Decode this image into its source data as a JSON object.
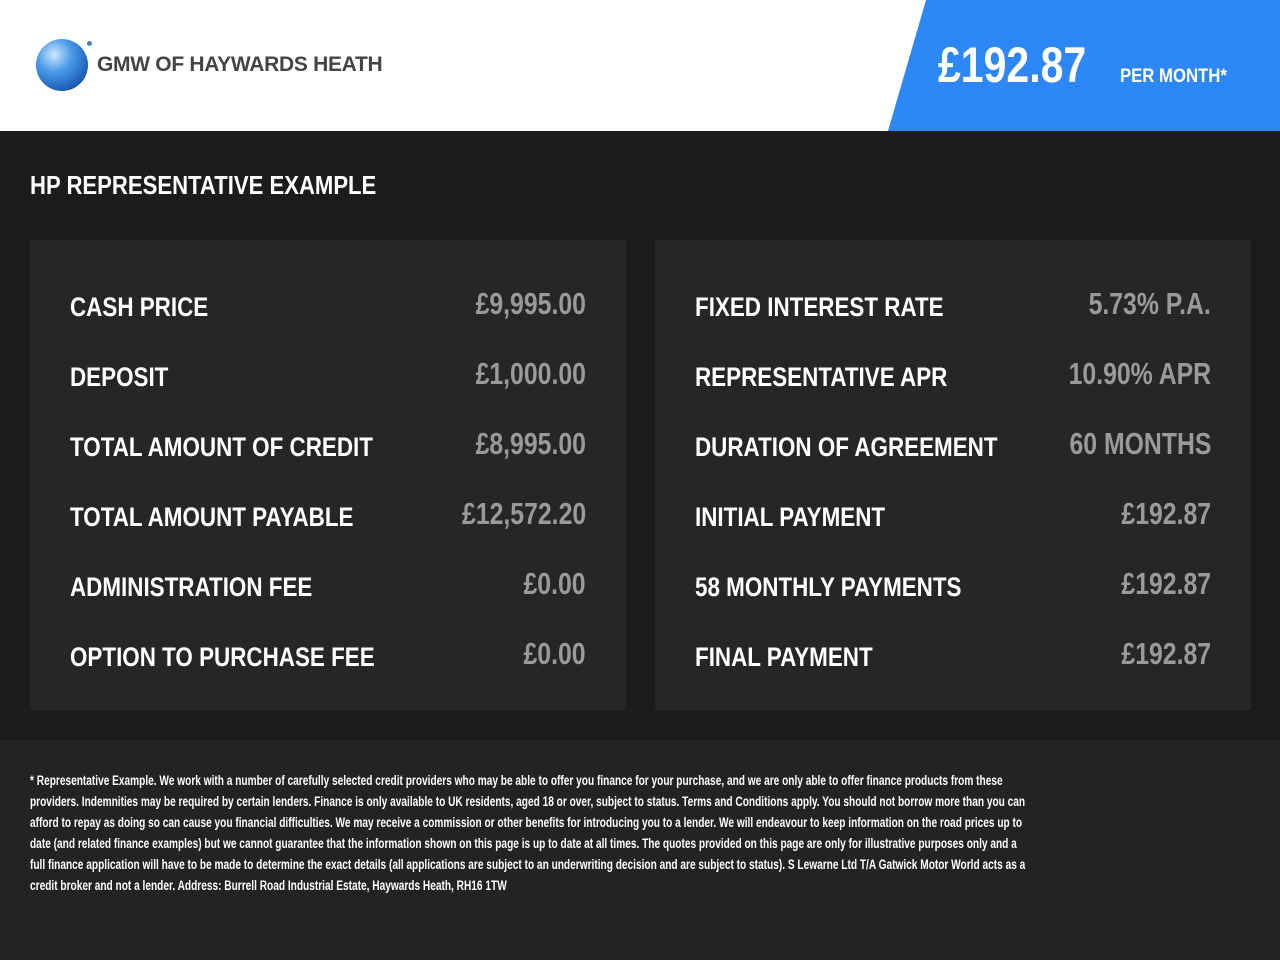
{
  "header": {
    "logo_text": "GMW OF HAYWARDS HEATH",
    "price": "£192.87",
    "per_month": "PER MONTH*",
    "accent": "#2e87f6"
  },
  "title": "HP REPRESENTATIVE EXAMPLE",
  "left": [
    {
      "label": "CASH PRICE",
      "value": "£9,995.00"
    },
    {
      "label": "DEPOSIT",
      "value": "£1,000.00"
    },
    {
      "label": "TOTAL AMOUNT OF CREDIT",
      "value": "£8,995.00"
    },
    {
      "label": "TOTAL AMOUNT PAYABLE",
      "value": "£12,572.20"
    },
    {
      "label": "ADMINISTRATION FEE",
      "value": "£0.00"
    },
    {
      "label": "OPTION TO PURCHASE FEE",
      "value": "£0.00"
    }
  ],
  "right": [
    {
      "label": "FIXED INTEREST RATE",
      "value": "5.73% P.A."
    },
    {
      "label": "REPRESENTATIVE APR",
      "value": "10.90% APR"
    },
    {
      "label": "DURATION OF AGREEMENT",
      "value": "60 MONTHS"
    },
    {
      "label": "INITIAL PAYMENT",
      "value": "£192.87"
    },
    {
      "label": "58 MONTHLY PAYMENTS",
      "value": "£192.87"
    },
    {
      "label": "FINAL PAYMENT",
      "value": "£192.87"
    }
  ],
  "disclaimer": [
    "* Representative Example. We work with a number of carefully selected credit providers who may be able to offer you finance for your purchase, and we are only able to offer finance products from these",
    "providers. Indemnities may be required by certain lenders. Finance is only available to UK residents, aged 18 or over, subject to status. Terms and Conditions apply. You should not borrow more than you can",
    "afford to repay as doing so can cause you financial difficulties. We may receive a commission or other benefits for introducing you to a lender. We will endeavour to keep information on the road prices up to",
    "date (and related finance examples) but we cannot guarantee that the information shown on this page is up to date at all times. The quotes provided on this page are only for illustrative purposes only and a",
    "full finance application will have to be made to determine the exact details (all applications are subject to an underwriting decision and are subject to status). S Lewarne Ltd T/A Gatwick Motor World acts as a",
    "credit broker and not a lender. Address: Burrell Road Industrial Estate, Haywards Heath, RH16 1TW"
  ]
}
